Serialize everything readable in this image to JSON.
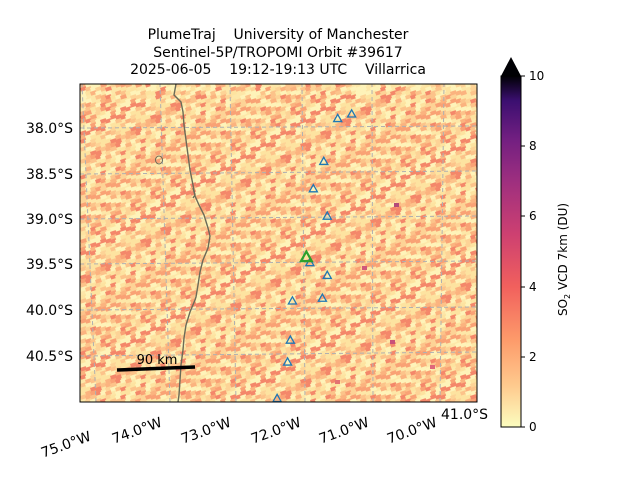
{
  "title": {
    "line1": "PlumeTraj    University of Manchester",
    "line2": "Sentinel-5P/TROPOMI Orbit #39617",
    "line3": "2025-06-05    19:12-19:13 UTC    Villarrica"
  },
  "map": {
    "lat_labels": [
      "38.0°S",
      "38.5°S",
      "39.0°S",
      "39.5°S",
      "40.0°S",
      "40.5°S"
    ],
    "lon_labels": [
      "75.0°W",
      "74.0°W",
      "73.0°W",
      "72.0°W",
      "71.0°W",
      "70.0°W"
    ],
    "corner_label": "41.0°S",
    "scale_bar_label": "90 km",
    "colors": {
      "volcano_other": "#1f77b4",
      "volcano_target": "#2ca02c",
      "coast": "#6b6b58"
    }
  },
  "colorbar": {
    "label": "SO",
    "label_sub": "2",
    "label_rest": " VCD 7km (DU)",
    "ticks": [
      "0",
      "2",
      "4",
      "6",
      "8",
      "10"
    ],
    "colormap": "magma_r"
  },
  "chart_data": {
    "type": "heatmap",
    "x_axis": {
      "ticks": [
        "75.0°W",
        "74.0°W",
        "73.0°W",
        "72.0°W",
        "71.0°W",
        "70.0°W"
      ]
    },
    "y_axis": {
      "ticks": [
        "38.0°S",
        "38.5°S",
        "39.0°S",
        "39.5°S",
        "40.0°S",
        "40.5°S",
        "41.0°S"
      ]
    },
    "value_range": [
      0,
      10
    ],
    "volcanoes_other": [
      {
        "lon": -71.5,
        "lat": -37.9
      },
      {
        "lon": -71.3,
        "lat": -37.85
      },
      {
        "lon": -71.7,
        "lat": -38.37
      },
      {
        "lon": -71.85,
        "lat": -38.67
      },
      {
        "lon": -71.65,
        "lat": -38.97
      },
      {
        "lon": -71.9,
        "lat": -39.48
      },
      {
        "lon": -71.65,
        "lat": -39.62
      },
      {
        "lon": -71.72,
        "lat": -39.87
      },
      {
        "lon": -72.15,
        "lat": -39.9
      },
      {
        "lon": -72.18,
        "lat": -40.33
      },
      {
        "lon": -72.22,
        "lat": -40.57
      },
      {
        "lon": -72.37,
        "lat": -40.97
      }
    ],
    "volcano_target": {
      "lon": -71.95,
      "lat": -39.42
    },
    "grid": true
  }
}
